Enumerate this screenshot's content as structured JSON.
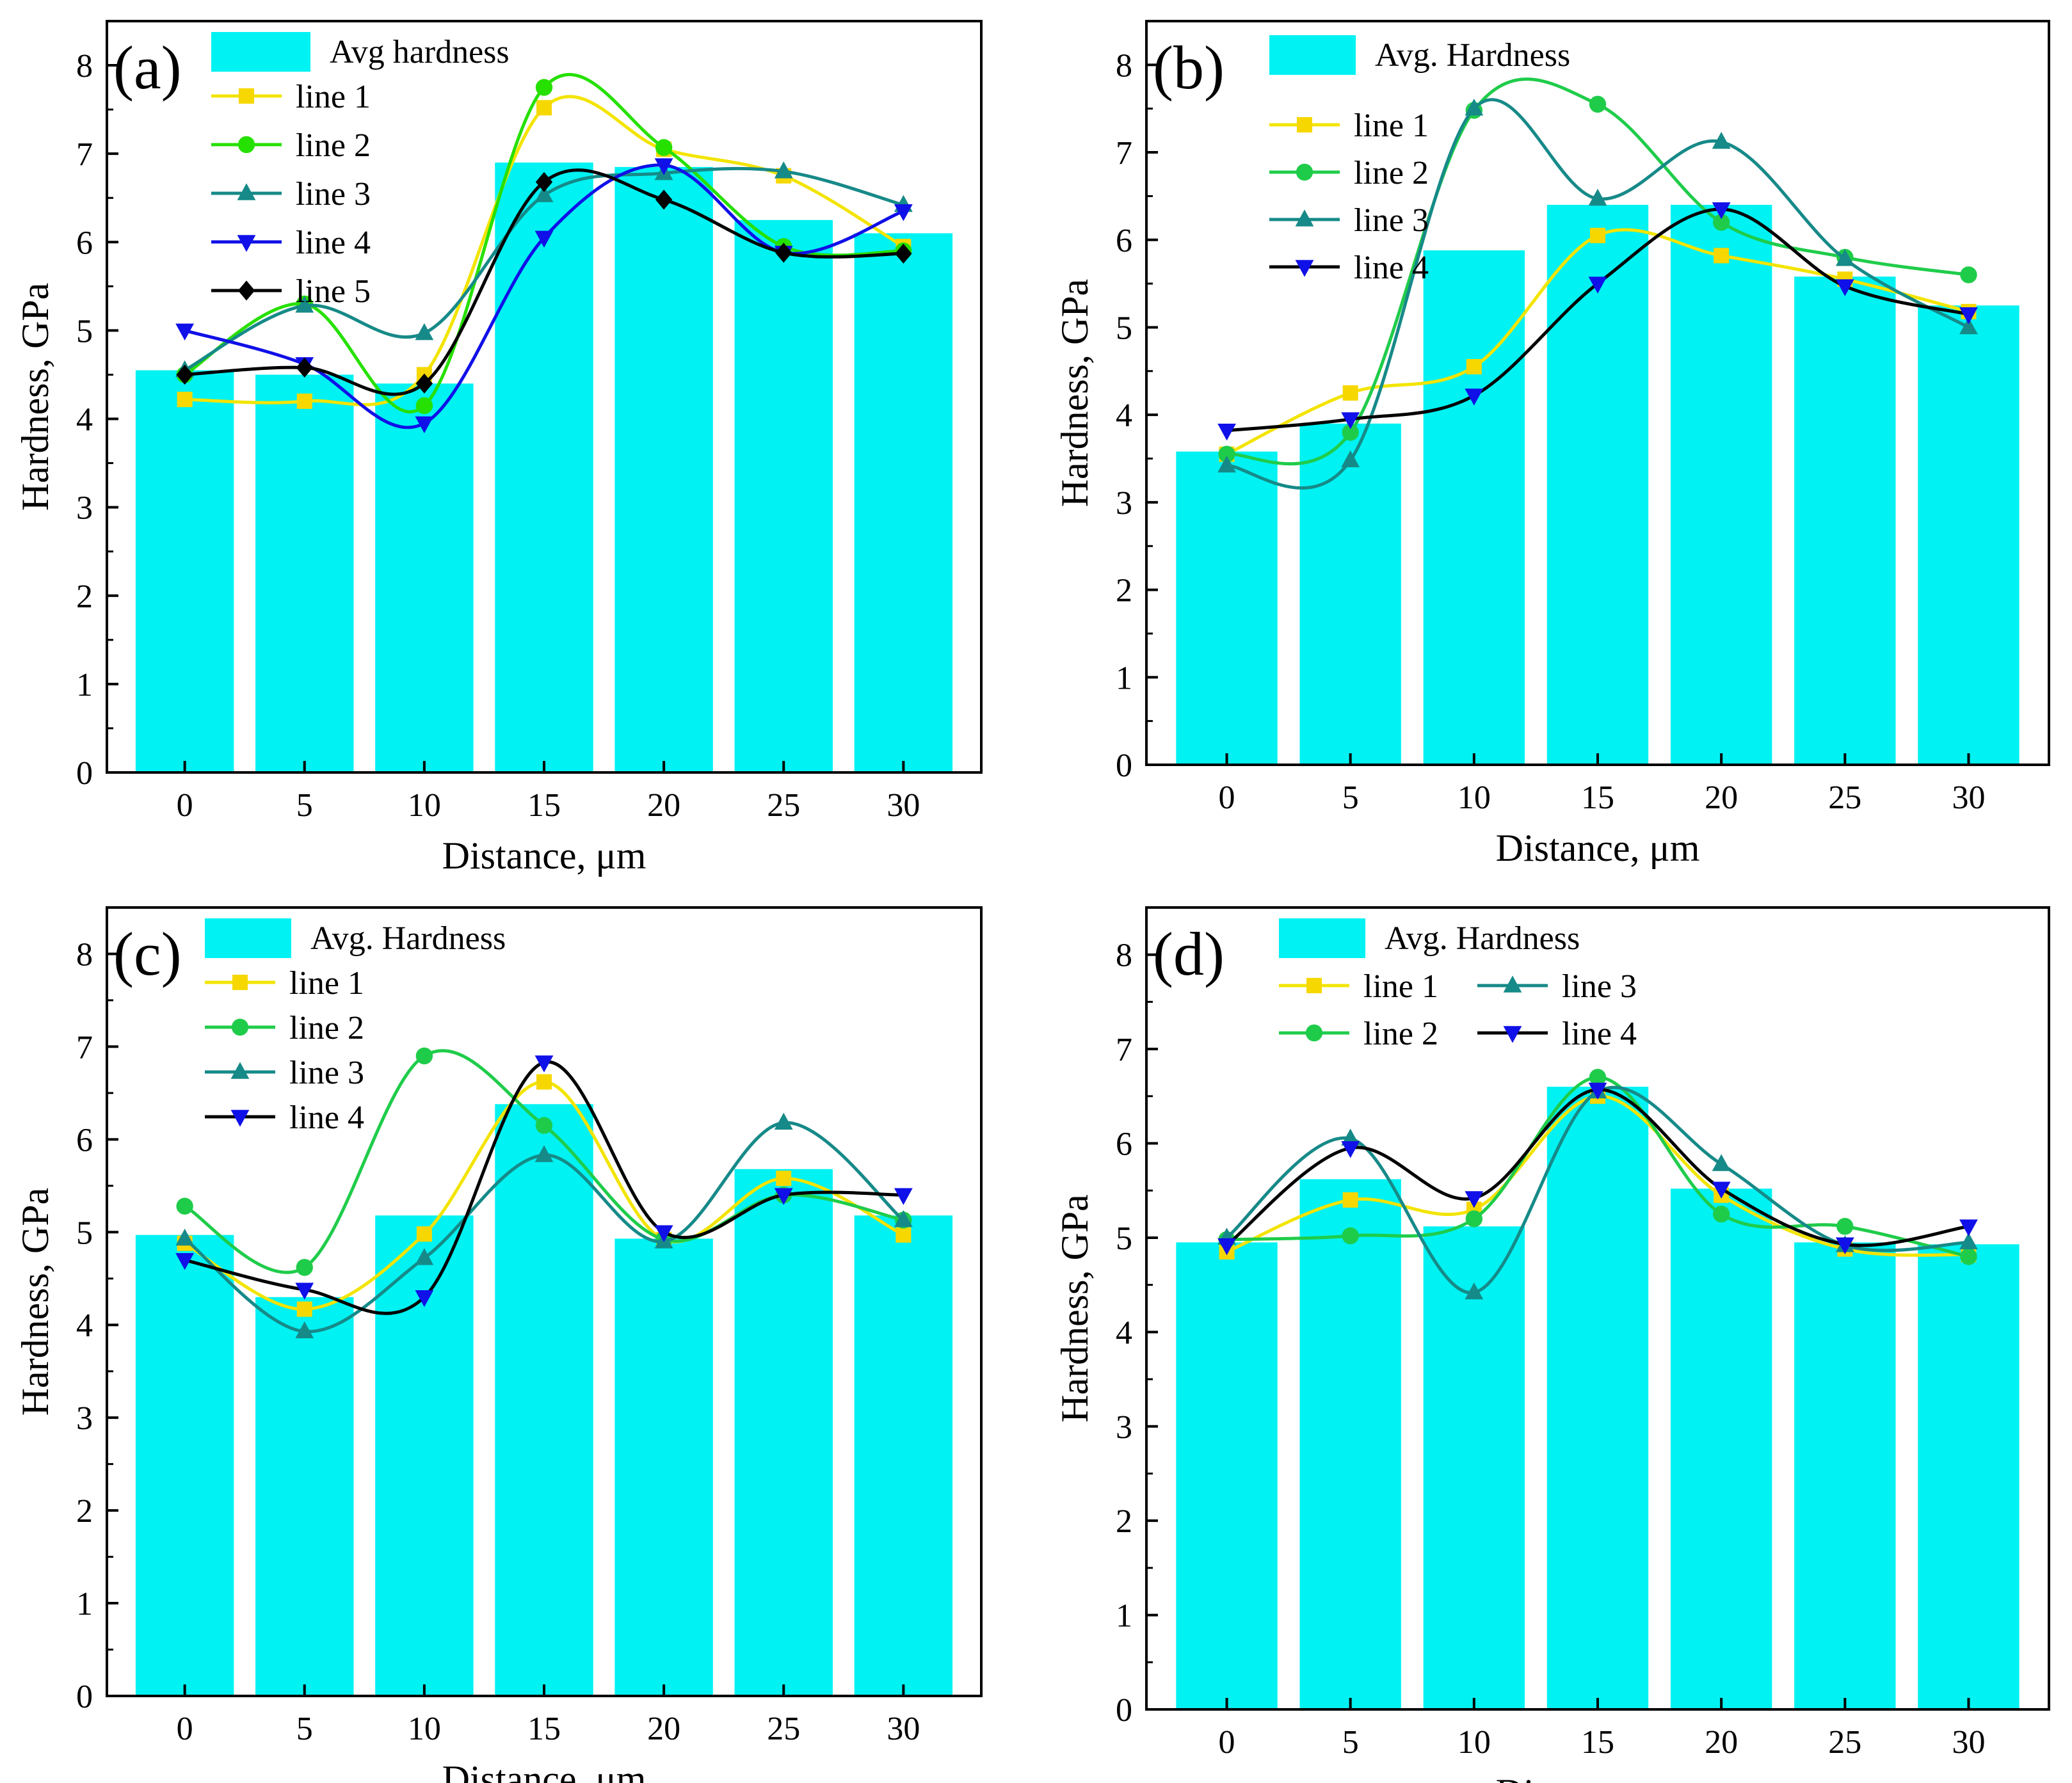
{
  "colors": {
    "bar": "#00f2f2",
    "line1": "#f3e400",
    "line1_marker": "#f6d800",
    "line2_a": "#26e000",
    "line2": "#1fcc4a",
    "line3": "#168a88",
    "line4": "#1010e8",
    "line4_dark": "#000000",
    "line5": "#000000"
  },
  "chart_data": [
    {
      "type": "bar+line",
      "panel_label": "(a)",
      "xlabel": "Distance, μm",
      "ylabel": "Hardness, GPa",
      "ylim": [
        0,
        8.5
      ],
      "yticks": [
        "0",
        "1",
        "2",
        "3",
        "4",
        "5",
        "6",
        "7",
        "8"
      ],
      "categories": [
        "0",
        "5",
        "10",
        "15",
        "20",
        "25",
        "30"
      ],
      "x": [
        0,
        5,
        10,
        15,
        20,
        25,
        30
      ],
      "bar": {
        "name": "Avg hardness",
        "values": [
          4.55,
          4.5,
          4.4,
          6.9,
          6.85,
          6.25,
          6.1
        ]
      },
      "series": [
        {
          "name": "line 1",
          "marker": "square",
          "color": "line1",
          "values": [
            4.22,
            4.2,
            4.5,
            7.52,
            7.05,
            6.75,
            5.95
          ]
        },
        {
          "name": "line 2",
          "marker": "circle",
          "color": "line2_a",
          "values": [
            4.5,
            5.3,
            4.15,
            7.75,
            7.07,
            5.95,
            5.9
          ]
        },
        {
          "name": "line 3",
          "marker": "triangle-up",
          "color": "line3",
          "values": [
            4.55,
            5.28,
            4.97,
            6.53,
            6.78,
            6.8,
            6.42
          ]
        },
        {
          "name": "line 4",
          "marker": "triangle-down",
          "color": "line4",
          "values": [
            5.0,
            4.62,
            3.95,
            6.05,
            6.87,
            5.88,
            6.35
          ]
        },
        {
          "name": "line 5",
          "marker": "diamond",
          "color": "line5",
          "values": [
            4.5,
            4.58,
            4.4,
            6.68,
            6.48,
            5.88,
            5.87
          ]
        }
      ],
      "legend_position": "top-left"
    },
    {
      "type": "bar+line",
      "panel_label": "(b)",
      "xlabel": "Distance, μm",
      "ylabel": "Hardness, GPa",
      "ylim": [
        0,
        8.5
      ],
      "yticks": [
        "0",
        "1",
        "2",
        "3",
        "4",
        "5",
        "6",
        "7",
        "8"
      ],
      "categories": [
        "0",
        "5",
        "10",
        "15",
        "20",
        "25",
        "30"
      ],
      "x": [
        0,
        5,
        10,
        15,
        20,
        25,
        30
      ],
      "bar": {
        "name": "Avg. Hardness",
        "values": [
          3.58,
          3.9,
          5.88,
          6.4,
          6.4,
          5.58,
          5.25
        ]
      },
      "series": [
        {
          "name": "line 1",
          "marker": "square",
          "color": "line1",
          "values": [
            3.55,
            4.25,
            4.55,
            6.05,
            5.82,
            5.55,
            5.18
          ]
        },
        {
          "name": "line 2",
          "marker": "circle",
          "color": "line2",
          "values": [
            3.55,
            3.8,
            7.48,
            7.55,
            6.2,
            5.8,
            5.6
          ]
        },
        {
          "name": "line 3",
          "marker": "triangle-up",
          "color": "line3",
          "values": [
            3.42,
            3.48,
            7.5,
            6.47,
            7.12,
            5.78,
            5.0
          ]
        },
        {
          "name": "line 4",
          "marker": "triangle-down",
          "color": "line4_dark",
          "values": [
            3.82,
            3.95,
            4.22,
            5.5,
            6.35,
            5.47,
            5.15
          ]
        }
      ],
      "legend_position": "top-left"
    },
    {
      "type": "bar+line",
      "panel_label": "(c)",
      "xlabel": "Distance, μm",
      "ylabel": "Hardness, GPa",
      "ylim": [
        0,
        8.5
      ],
      "yticks": [
        "0",
        "1",
        "2",
        "3",
        "4",
        "5",
        "6",
        "7",
        "8"
      ],
      "categories": [
        "0",
        "5",
        "10",
        "15",
        "20",
        "25",
        "30"
      ],
      "x": [
        0,
        5,
        10,
        15,
        20,
        25,
        30
      ],
      "bar": {
        "name": "Avg. Hardness",
        "values": [
          4.97,
          4.3,
          5.18,
          6.38,
          4.93,
          5.68,
          5.18
        ]
      },
      "series": [
        {
          "name": "line 1",
          "marker": "square",
          "color": "line1",
          "values": [
            4.88,
            4.17,
            4.98,
            6.62,
            4.92,
            5.58,
            4.97
          ]
        },
        {
          "name": "line 2",
          "marker": "circle",
          "color": "line2",
          "values": [
            5.28,
            4.62,
            6.9,
            6.15,
            4.92,
            5.4,
            5.13
          ]
        },
        {
          "name": "line 3",
          "marker": "triangle-up",
          "color": "line3",
          "values": [
            4.93,
            3.93,
            4.72,
            5.83,
            4.9,
            6.18,
            5.13
          ]
        },
        {
          "name": "line 4",
          "marker": "triangle-down",
          "color": "line4_dark",
          "values": [
            4.7,
            4.38,
            4.3,
            6.83,
            5.0,
            5.4,
            5.4
          ]
        }
      ],
      "legend_position": "top-left"
    },
    {
      "type": "bar+line",
      "panel_label": "(d)",
      "xlabel": "Distance, μm",
      "ylabel": "Hardness, GPa",
      "ylim": [
        0,
        8.5
      ],
      "yticks": [
        "0",
        "1",
        "2",
        "3",
        "4",
        "5",
        "6",
        "7",
        "8"
      ],
      "categories": [
        "0",
        "5",
        "10",
        "15",
        "20",
        "25",
        "30"
      ],
      "x": [
        0,
        5,
        10,
        15,
        20,
        25,
        30
      ],
      "bar": {
        "name": "Avg. Hardness",
        "values": [
          4.95,
          5.62,
          5.12,
          6.6,
          5.52,
          4.95,
          4.93
        ]
      },
      "series": [
        {
          "name": "line 1",
          "marker": "square",
          "color": "line1",
          "values": [
            4.85,
            5.4,
            5.3,
            6.5,
            5.45,
            4.88,
            4.82
          ]
        },
        {
          "name": "line 2",
          "marker": "circle",
          "color": "line2",
          "values": [
            4.98,
            5.02,
            5.2,
            6.7,
            5.25,
            5.12,
            4.8
          ]
        },
        {
          "name": "line 3",
          "marker": "triangle-up",
          "color": "line3",
          "values": [
            5.0,
            6.05,
            4.42,
            6.55,
            5.78,
            4.92,
            4.95
          ]
        },
        {
          "name": "line 4",
          "marker": "triangle-down",
          "color": "line4_dark",
          "values": [
            4.92,
            5.95,
            5.42,
            6.57,
            5.52,
            4.93,
            5.12
          ]
        }
      ],
      "legend_position": "top-left"
    }
  ]
}
